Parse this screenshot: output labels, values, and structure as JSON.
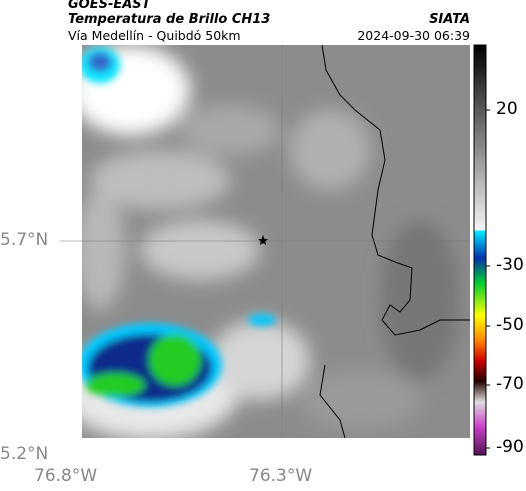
{
  "header": {
    "title": "GOES-EAST",
    "subtitle": "Temperatura de Brillo CH13",
    "region": "Vía Medellín - Quibdó 50km",
    "source": "SIATA",
    "timestamp": "2024-09-30 06:39"
  },
  "axes": {
    "lat_labels": [
      "5.7°N",
      "5.2°N"
    ],
    "lon_labels": [
      "76.8°W",
      "76.3°W"
    ]
  },
  "colorbar": {
    "ticks": [
      20,
      -30,
      -50,
      -70,
      -90
    ]
  }
}
